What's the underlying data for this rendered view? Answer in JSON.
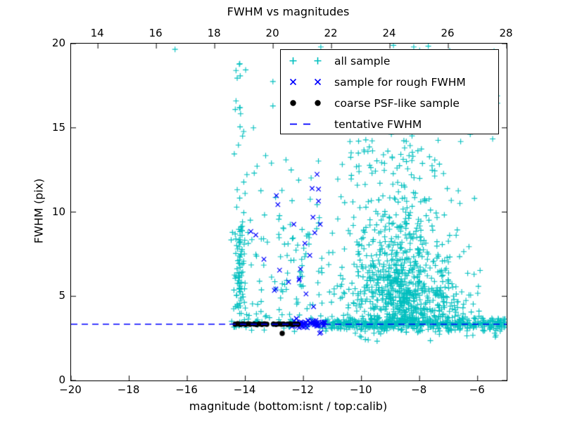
{
  "chart_data": {
    "type": "scatter",
    "title": "FWHM vs magnitudes",
    "xlabel": "magnitude (bottom:isnt / top:calib)",
    "ylabel": "FWHM (pix)",
    "xlim": [
      -20,
      -5
    ],
    "xlim_top": [
      13.08,
      28
    ],
    "ylim": [
      0,
      20
    ],
    "grid": false,
    "legend_position": "upper-right-inside",
    "x_ticks_bottom": [
      {
        "v": -20,
        "label": "−20"
      },
      {
        "v": -18,
        "label": "−18"
      },
      {
        "v": -16,
        "label": "−16"
      },
      {
        "v": -14,
        "label": "−14"
      },
      {
        "v": -12,
        "label": "−12"
      },
      {
        "v": -10,
        "label": "−10"
      },
      {
        "v": -8,
        "label": "−8"
      },
      {
        "v": -6,
        "label": "−6"
      }
    ],
    "x_ticks_top": [
      {
        "v": 14,
        "label": "14"
      },
      {
        "v": 16,
        "label": "16"
      },
      {
        "v": 18,
        "label": "18"
      },
      {
        "v": 20,
        "label": "20"
      },
      {
        "v": 22,
        "label": "22"
      },
      {
        "v": 24,
        "label": "24"
      },
      {
        "v": 26,
        "label": "26"
      },
      {
        "v": 28,
        "label": "28"
      }
    ],
    "y_ticks": [
      {
        "v": 0,
        "label": "0"
      },
      {
        "v": 5,
        "label": "5"
      },
      {
        "v": 10,
        "label": "10"
      },
      {
        "v": 15,
        "label": "15"
      },
      {
        "v": 20,
        "label": "20"
      }
    ],
    "tentative_fwhm": 3.34,
    "colors": {
      "all_sample": "#00bfbf",
      "rough_sample": "#0000ff",
      "psf_sample": "#000000",
      "tentative_line": "#0000ff"
    },
    "series": [
      {
        "name": "all sample",
        "marker": "plus",
        "color": "#00bfbf",
        "points": [
          [
            -16.42,
            19.66
          ],
          [
            -14.32,
            18.4
          ],
          [
            -14.28,
            17.95
          ],
          [
            -13.05,
            17.75
          ],
          [
            -14.32,
            16.6
          ],
          [
            -14.18,
            16.2
          ],
          [
            -13.05,
            16.3
          ],
          [
            -13.72,
            15.0
          ],
          [
            -14.38,
            13.45
          ],
          [
            -13.3,
            13.35
          ],
          [
            -13.1,
            12.9
          ],
          [
            -12.55,
            17.5
          ],
          [
            -12.45,
            16.5
          ],
          [
            -12.6,
            13.1
          ],
          [
            -12.42,
            12.5
          ],
          [
            -8.9,
            19.9
          ],
          [
            -8.2,
            19.8
          ],
          [
            -7.7,
            19.85
          ],
          [
            -11.4,
            19.8
          ],
          [
            -13.45,
            8.4
          ]
        ],
        "clusters": [
          {
            "n": 480,
            "x": {
              "d": "u",
              "a": -11.35,
              "b": -5.05
            },
            "y": {
              "d": "g",
              "mu": 3.38,
              "s": 0.2,
              "lo": 2.75,
              "hi": 4.2
            }
          },
          {
            "n": 520,
            "x": {
              "d": "g",
              "mu": -8.55,
              "s": 1.05,
              "lo": -11.35,
              "hi": -5.05
            },
            "y": {
              "d": "g",
              "mu": 4.7,
              "s": 1.05,
              "lo": 2.75,
              "hi": 7.2
            }
          },
          {
            "n": 270,
            "x": {
              "d": "g",
              "mu": -8.8,
              "s": 0.95,
              "lo": -11.35,
              "hi": -5.05
            },
            "y": {
              "d": "g",
              "mu": 7.4,
              "s": 1.5,
              "lo": 4.0,
              "hi": 11.0
            }
          },
          {
            "n": 115,
            "x": {
              "d": "g",
              "mu": -8.8,
              "s": 1.25,
              "lo": -11.2,
              "hi": -5.1
            },
            "y": {
              "d": "u",
              "a": 9.5,
              "b": 14.3
            }
          },
          {
            "n": 38,
            "x": {
              "d": "u",
              "a": -10.3,
              "b": -5.2
            },
            "y": {
              "d": "u",
              "a": 14.3,
              "b": 19.9
            }
          },
          {
            "n": 95,
            "x": {
              "d": "u",
              "a": -14.55,
              "b": -11.35
            },
            "y": {
              "d": "u",
              "a": 3.5,
              "b": 9.3
            }
          },
          {
            "n": 22,
            "x": {
              "d": "u",
              "a": -14.5,
              "b": -11.4
            },
            "y": {
              "d": "u",
              "a": 9.3,
              "b": 13.8
            }
          },
          {
            "n": 72,
            "x": {
              "d": "g",
              "mu": -14.18,
              "s": 0.09
            },
            "y": {
              "d": "u",
              "a": 3.3,
              "b": 9.3
            }
          },
          {
            "n": 14,
            "x": {
              "d": "g",
              "mu": -14.17,
              "s": 0.1
            },
            "y": {
              "d": "u",
              "a": 9.3,
              "b": 19.3
            }
          },
          {
            "n": 13,
            "x": {
              "d": "u",
              "a": -10.3,
              "b": -5.3
            },
            "y": {
              "d": "u",
              "a": 2.3,
              "b": 2.85
            }
          },
          {
            "n": 30,
            "x": {
              "d": "u",
              "a": -14.4,
              "b": -12.1
            },
            "y": {
              "d": "g",
              "mu": 3.45,
              "s": 0.3,
              "lo": 2.9,
              "hi": 4.4
            }
          },
          {
            "n": 22,
            "x": {
              "d": "u",
              "a": -12.6,
              "b": -11.35
            },
            "y": {
              "d": "g",
              "mu": 3.4,
              "s": 0.25,
              "lo": 2.95,
              "hi": 4.1
            }
          }
        ]
      },
      {
        "name": "sample for rough FWHM",
        "marker": "x",
        "color": "#0000ff",
        "points": [
          [
            -12.93,
            10.98
          ],
          [
            -12.88,
            10.44
          ],
          [
            -11.53,
            12.24
          ],
          [
            -11.7,
            11.4
          ],
          [
            -11.48,
            11.36
          ],
          [
            -11.48,
            10.65
          ],
          [
            -11.67,
            9.69
          ],
          [
            -11.42,
            9.27
          ],
          [
            -12.33,
            9.27
          ],
          [
            -11.61,
            8.77
          ],
          [
            -13.81,
            8.85
          ],
          [
            -13.64,
            8.64
          ],
          [
            -11.95,
            8.14
          ],
          [
            -11.78,
            7.43
          ],
          [
            -13.36,
            7.2
          ],
          [
            -12.82,
            6.55
          ],
          [
            -12.51,
            5.85
          ],
          [
            -12.15,
            5.97
          ],
          [
            -13.0,
            5.35
          ],
          [
            -12.95,
            5.43
          ],
          [
            -11.91,
            5.14
          ],
          [
            -11.65,
            4.38
          ],
          [
            -12.14,
            6.05
          ],
          [
            -12.1,
            6.62
          ],
          [
            -11.4,
            2.85
          ],
          [
            -11.44,
            2.8
          ]
        ],
        "clusters": [
          {
            "n": 55,
            "x": {
              "d": "u",
              "a": -12.42,
              "b": -11.25
            },
            "y": {
              "d": "g",
              "mu": 3.35,
              "s": 0.14,
              "lo": 3.0,
              "hi": 3.75
            }
          }
        ]
      },
      {
        "name": "coarse PSF-like sample",
        "marker": "dot",
        "color": "#000000",
        "points": [
          [
            -14.35,
            3.34
          ],
          [
            -14.26,
            3.37
          ],
          [
            -14.17,
            3.33
          ],
          [
            -14.08,
            3.36
          ],
          [
            -13.99,
            3.33
          ],
          [
            -13.9,
            3.36
          ],
          [
            -13.83,
            3.34
          ],
          [
            -13.7,
            3.35
          ],
          [
            -13.61,
            3.32
          ],
          [
            -13.52,
            3.36
          ],
          [
            -13.43,
            3.33
          ],
          [
            -13.34,
            3.36
          ],
          [
            -13.26,
            3.34
          ],
          [
            -13.03,
            3.35
          ],
          [
            -12.94,
            3.33
          ],
          [
            -12.85,
            3.36
          ],
          [
            -12.76,
            3.34
          ],
          [
            -12.68,
            3.35
          ],
          [
            -12.55,
            3.34
          ],
          [
            -12.46,
            3.36
          ],
          [
            -12.37,
            3.33
          ],
          [
            -12.28,
            3.35
          ],
          [
            -12.19,
            3.34
          ],
          [
            -12.73,
            2.8
          ]
        ],
        "clusters": []
      },
      {
        "name": "tentative FWHM",
        "marker": "hline",
        "color": "#0000ff",
        "y": 3.34,
        "linestyle": "dashed"
      }
    ]
  }
}
